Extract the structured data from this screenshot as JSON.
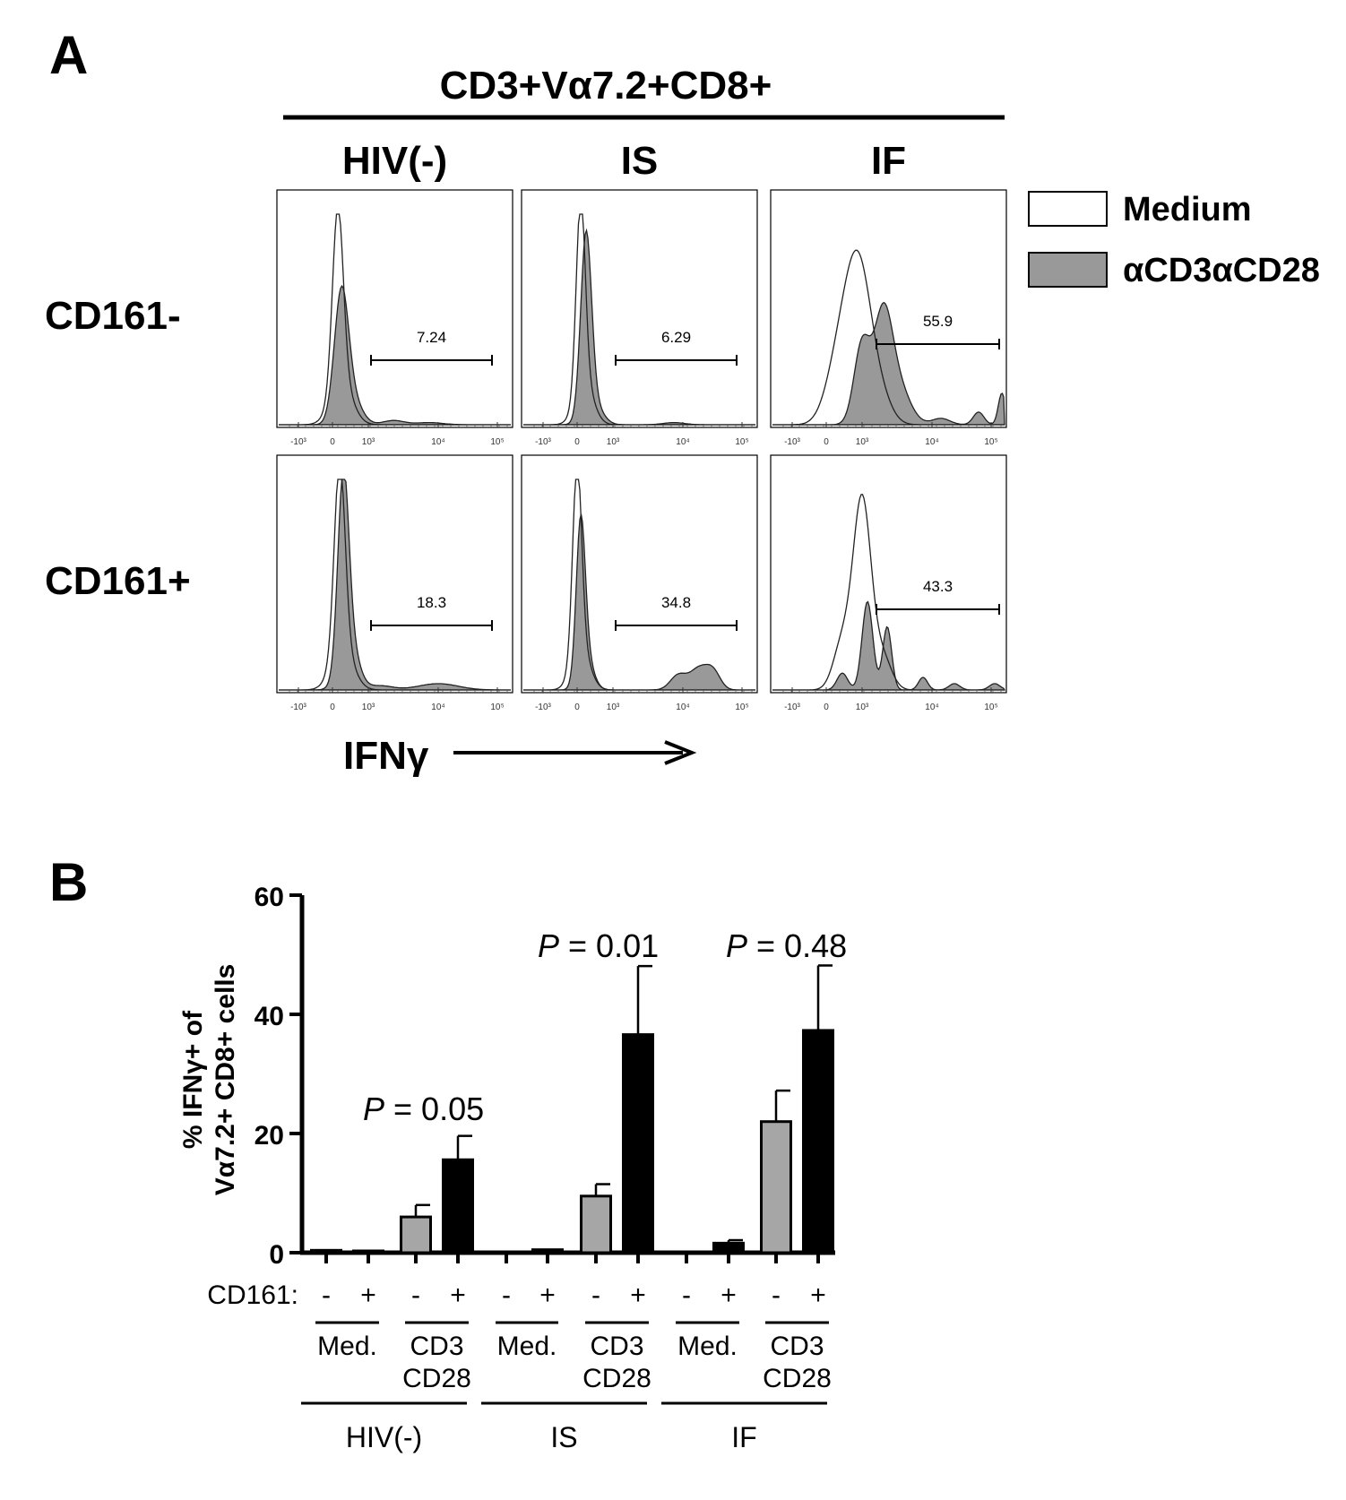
{
  "panel_a": {
    "letter": "A",
    "header": "CD3+Vα7.2+CD8+",
    "columns": [
      "HIV(-)",
      "IS",
      "IF"
    ],
    "rows": [
      "CD161-",
      "CD161+"
    ],
    "legend": [
      {
        "label": "Medium",
        "fill": "#ffffff"
      },
      {
        "label": "αCD3αCD28",
        "fill": "#999999"
      }
    ],
    "gates": [
      [
        "7.24",
        "6.29",
        "55.9"
      ],
      [
        "18.3",
        "34.8",
        "43.3"
      ]
    ],
    "x_ticks": [
      "-10³",
      "0",
      "10³",
      "10⁴",
      "10⁵"
    ],
    "axis_label": "IFNγ",
    "colors": {
      "stim_fill": "#999999",
      "medium_fill": "#ffffff",
      "line": "#000000"
    }
  },
  "panel_b": {
    "letter": "B",
    "cd161_label": "CD161:",
    "cd161_signs": [
      "-",
      "+",
      "-",
      "+",
      "-",
      "+",
      "-",
      "+",
      "-",
      "+",
      "-",
      "+"
    ],
    "treatments": [
      {
        "line1": "Med.",
        "line2": ""
      },
      {
        "line1": "CD3",
        "line2": "CD28"
      },
      {
        "line1": "Med.",
        "line2": ""
      },
      {
        "line1": "CD3",
        "line2": "CD28"
      },
      {
        "line1": "Med.",
        "line2": ""
      },
      {
        "line1": "CD3",
        "line2": "CD28"
      }
    ],
    "groups": [
      "HIV(-)",
      "IS",
      "IF"
    ],
    "p_values": [
      {
        "italic": "P",
        "text": " = 0.05"
      },
      {
        "italic": "P",
        "text": " = 0.01"
      },
      {
        "italic": "P",
        "text": " = 0.48"
      }
    ]
  },
  "chart_data": {
    "type": "bar",
    "ylabel_line1": "% IFNγ+ of",
    "ylabel_line2": "Vα7.2+ CD8+ cells",
    "ylim": [
      0,
      60
    ],
    "yticks": [
      "0",
      "20",
      "40",
      "60"
    ],
    "ytick_values": [
      0,
      20,
      40,
      60
    ],
    "bars": [
      {
        "group": "HIV(-)",
        "treatment": "Med.",
        "cd161": "-",
        "value": 0.4,
        "error": 0
      },
      {
        "group": "HIV(-)",
        "treatment": "Med.",
        "cd161": "+",
        "value": 0.3,
        "error": 0
      },
      {
        "group": "HIV(-)",
        "treatment": "CD3 CD28",
        "cd161": "-",
        "value": 6,
        "error": 2
      },
      {
        "group": "HIV(-)",
        "treatment": "CD3 CD28",
        "cd161": "+",
        "value": 15.6,
        "error": 4
      },
      {
        "group": "IS",
        "treatment": "Med.",
        "cd161": "-",
        "value": 0.1,
        "error": 0
      },
      {
        "group": "IS",
        "treatment": "Med.",
        "cd161": "+",
        "value": 0.5,
        "error": 0
      },
      {
        "group": "IS",
        "treatment": "CD3 CD28",
        "cd161": "-",
        "value": 9.5,
        "error": 2
      },
      {
        "group": "IS",
        "treatment": "CD3 CD28",
        "cd161": "+",
        "value": 36.6,
        "error": 11.5
      },
      {
        "group": "IF",
        "treatment": "Med.",
        "cd161": "-",
        "value": 0.1,
        "error": 0
      },
      {
        "group": "IF",
        "treatment": "Med.",
        "cd161": "+",
        "value": 1.6,
        "error": 0.5
      },
      {
        "group": "IF",
        "treatment": "CD3 CD28",
        "cd161": "-",
        "value": 22,
        "error": 5.2
      },
      {
        "group": "IF",
        "treatment": "CD3 CD28",
        "cd161": "+",
        "value": 37.3,
        "error": 10.9
      }
    ],
    "colors": {
      "cd161_minus": "#a6a6a6",
      "cd161_plus": "#000000"
    }
  }
}
